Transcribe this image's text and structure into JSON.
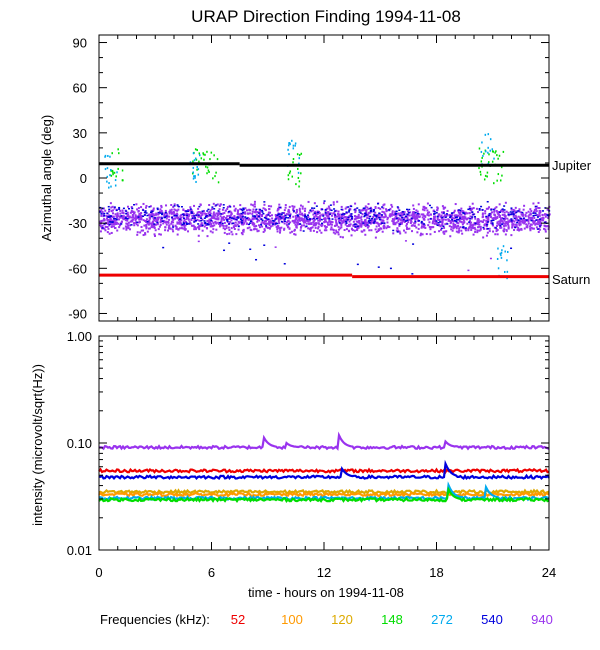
{
  "chart_data": [
    {
      "type": "scatter",
      "title": "URAP Direction Finding  1994-11-08",
      "ylabel": "Azimuthal angle (deg)",
      "xlim": [
        0,
        24
      ],
      "ylim": [
        -95,
        95
      ],
      "yticks": [
        "90",
        "60",
        "30",
        "0",
        "-30",
        "-60",
        "-90"
      ],
      "ytick_values": [
        90,
        60,
        30,
        0,
        -30,
        -60,
        -90
      ],
      "reference_lines": [
        {
          "name": "Jupiter",
          "color": "#000000",
          "segments": [
            [
              0,
              7.5,
              9.5
            ],
            [
              7.5,
              24,
              8.5
            ]
          ]
        },
        {
          "name": "Saturn",
          "color": "#ee0000",
          "segments": [
            [
              0,
              13.5,
              -64.5
            ],
            [
              13.5,
              24,
              -65.5
            ]
          ]
        }
      ],
      "series": [
        {
          "freq": "940",
          "color": "#9933ee",
          "band_center": -27,
          "band_spread": 7
        },
        {
          "freq": "540",
          "color": "#0000dd",
          "band_center": -25,
          "band_spread": 5
        },
        {
          "freq": "148",
          "color": "#00dd00",
          "bursts": [
            [
              0.9,
              10
            ],
            [
              5.3,
              10
            ],
            [
              6.0,
              8
            ],
            [
              10.4,
              6
            ],
            [
              20.5,
              10
            ],
            [
              21.2,
              8
            ]
          ]
        },
        {
          "freq": "272",
          "color": "#00aaee",
          "bursts": [
            [
              0.6,
              5
            ],
            [
              5.0,
              8
            ],
            [
              10.3,
              15
            ],
            [
              20.7,
              20
            ],
            [
              21.5,
              -55
            ]
          ]
        }
      ]
    },
    {
      "type": "line",
      "xlabel": "time - hours on 1994-11-08",
      "ylabel": "intensity (microvolt/sqrt(Hz))",
      "scale": "log",
      "ylim": [
        0.01,
        1.0
      ],
      "yticks": [
        "1.00",
        "0.10",
        "0.01"
      ],
      "ytick_values": [
        1.0,
        0.1,
        0.01
      ],
      "xticks": [
        "0",
        "6",
        "12",
        "18",
        "24"
      ],
      "xtick_values": [
        0,
        6,
        12,
        18,
        24
      ],
      "series": [
        {
          "freq": "940",
          "color": "#9933ee",
          "level": 0.091,
          "spikes": [
            [
              8.8,
              0.112
            ],
            [
              10.0,
              0.1
            ],
            [
              12.8,
              0.118
            ],
            [
              18.4,
              0.108
            ]
          ]
        },
        {
          "freq": "52",
          "color": "#ee0000",
          "level": 0.055,
          "spikes": []
        },
        {
          "freq": "540",
          "color": "#0000dd",
          "level": 0.048,
          "spikes": [
            [
              12.9,
              0.06
            ],
            [
              18.4,
              0.07
            ]
          ]
        },
        {
          "freq": "120",
          "color": "#ddaa00",
          "level": 0.035,
          "spikes": []
        },
        {
          "freq": "100",
          "color": "#ff9900",
          "level": 0.033,
          "spikes": []
        },
        {
          "freq": "272",
          "color": "#00aaee",
          "level": 0.0305,
          "spikes": [
            [
              18.6,
              0.042
            ],
            [
              20.6,
              0.04
            ]
          ]
        },
        {
          "freq": "148",
          "color": "#00dd00",
          "level": 0.0295,
          "spikes": [
            [
              18.6,
              0.038
            ]
          ]
        }
      ]
    }
  ],
  "legend": {
    "label": "Frequencies (kHz):",
    "items": [
      {
        "freq": "52",
        "color": "#ee0000"
      },
      {
        "freq": "100",
        "color": "#ff9900"
      },
      {
        "freq": "120",
        "color": "#ddaa00"
      },
      {
        "freq": "148",
        "color": "#00dd00"
      },
      {
        "freq": "272",
        "color": "#00aaee"
      },
      {
        "freq": "540",
        "color": "#0000dd"
      },
      {
        "freq": "940",
        "color": "#9933ee"
      }
    ]
  }
}
